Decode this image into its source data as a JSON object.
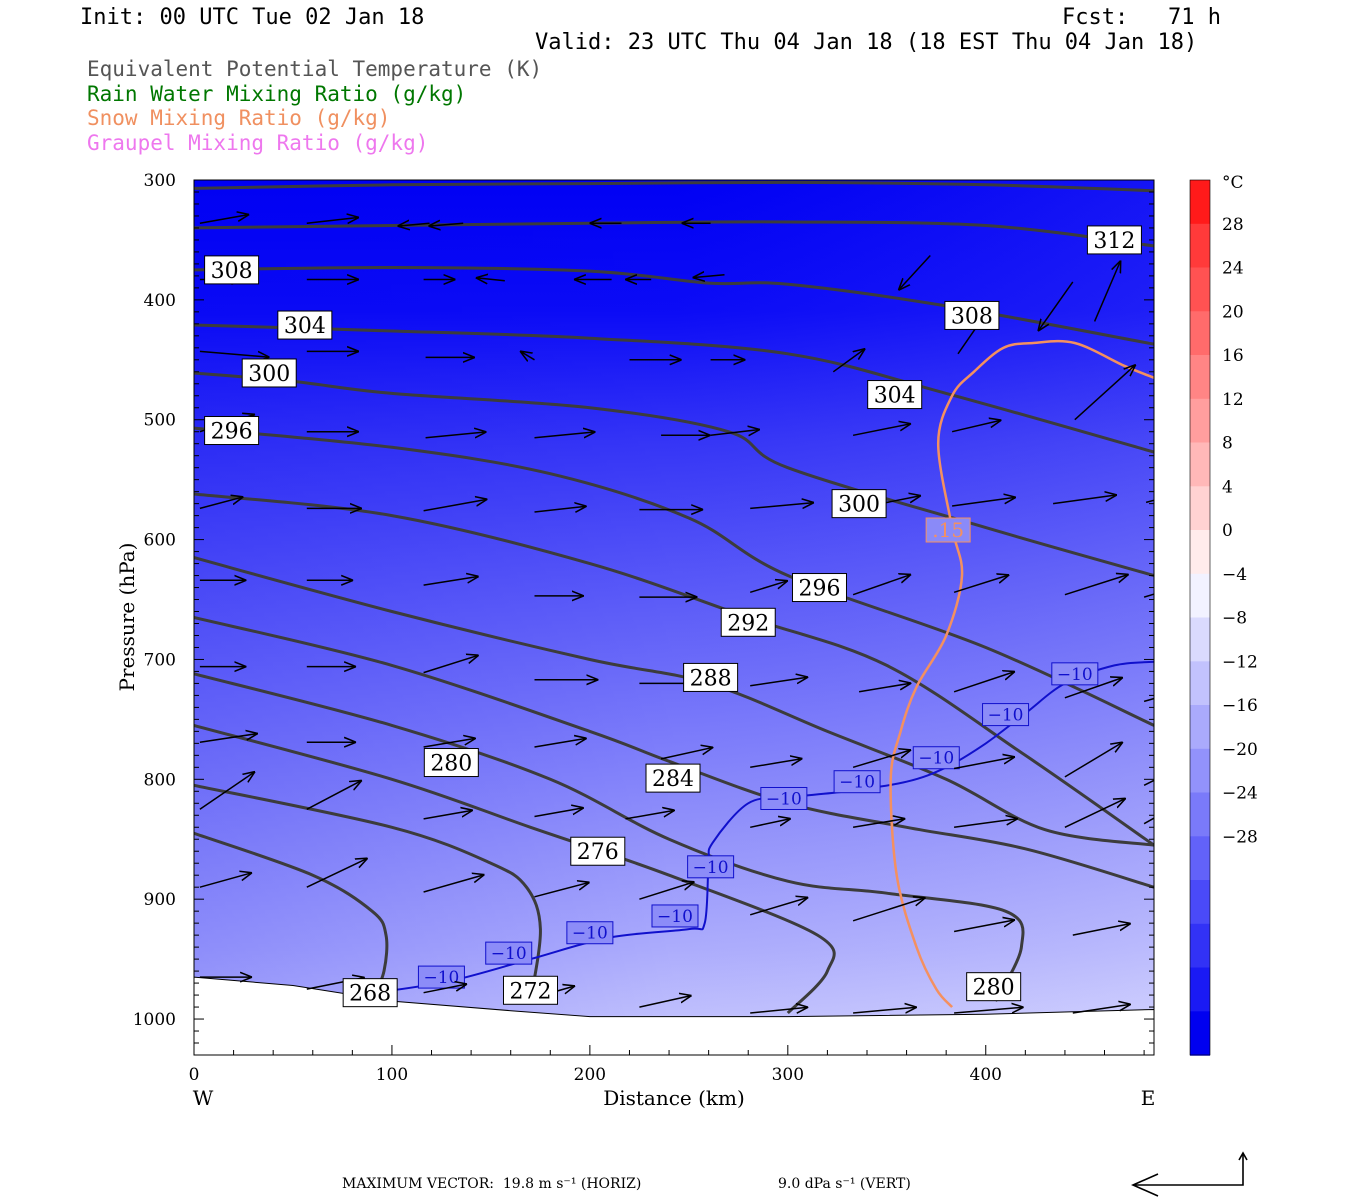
{
  "header": {
    "init": "Init: 00 UTC Tue 02 Jan 18",
    "fcst": "Fcst:   71 h",
    "valid": "Valid: 23 UTC Thu 04 Jan 18 (18 EST Thu 04 Jan 18)"
  },
  "legend": [
    {
      "label": "Equivalent Potential Temperature (K)",
      "color": "#555555"
    },
    {
      "label": "Rain Water Mixing Ratio (g/kg)",
      "color": "#007700"
    },
    {
      "label": "Snow Mixing Ratio (g/kg)",
      "color": "#f09060"
    },
    {
      "label": "Graupel Mixing Ratio (g/kg)",
      "color": "#ee77ee"
    }
  ],
  "footer": {
    "max_vector_label": "MAXIMUM VECTOR:",
    "horiz": "19.8 m s⁻¹ (HORIZ)",
    "vert": "9.0 dPa s⁻¹ (VERT)"
  },
  "chart_data": {
    "type": "cross-section",
    "xlabel": "Distance (km)",
    "ylabel": "Pressure (hPa)",
    "xlim": [
      0,
      485
    ],
    "ylim": [
      1030,
      300
    ],
    "x_ticks": [
      0,
      100,
      200,
      300,
      400
    ],
    "y_ticks": [
      300,
      400,
      500,
      600,
      700,
      800,
      900,
      1000
    ],
    "x_left_label": "W",
    "x_right_label": "E",
    "colorbar": {
      "unit": "°C",
      "ticks": [
        28,
        24,
        20,
        16,
        12,
        8,
        4,
        0,
        -4,
        -8,
        -12,
        -16,
        -20,
        -24,
        -28
      ],
      "colors_top_to_bottom": [
        "#ff1a1a",
        "#ff3a3a",
        "#ff5252",
        "#ff6b6b",
        "#ff8585",
        "#ff9e9e",
        "#ffb8b8",
        "#ffd2d2",
        "#ffecec",
        "#f2f2ff",
        "#dadafe",
        "#c2c2fd",
        "#aaaafc",
        "#9292fb",
        "#7a7afa",
        "#6262f9",
        "#4a4af8",
        "#3232f6",
        "#1a1af4",
        "#0000f0"
      ]
    },
    "theta_e_contours": [
      {
        "label": "312",
        "points": [
          [
            0,
            307
          ],
          [
            100,
            304
          ],
          [
            200,
            303
          ],
          [
            300,
            302
          ],
          [
            400,
            304
          ],
          [
            485,
            309
          ]
        ]
      },
      {
        "label": "312",
        "points": [
          [
            0,
            340
          ],
          [
            100,
            338
          ],
          [
            200,
            336
          ],
          [
            300,
            335
          ],
          [
            400,
            338
          ],
          [
            485,
            355
          ]
        ]
      },
      {
        "label": "308",
        "points": [
          [
            0,
            375
          ],
          [
            100,
            373
          ],
          [
            200,
            376
          ],
          [
            260,
            386
          ],
          [
            300,
            387
          ],
          [
            380,
            405
          ],
          [
            485,
            437
          ]
        ]
      },
      {
        "label": "304",
        "points": [
          [
            0,
            421
          ],
          [
            100,
            426
          ],
          [
            200,
            432
          ],
          [
            300,
            445
          ],
          [
            380,
            478
          ],
          [
            485,
            527
          ]
        ]
      },
      {
        "label": "300",
        "points": [
          [
            0,
            461
          ],
          [
            50,
            468
          ],
          [
            100,
            478
          ],
          [
            200,
            490
          ],
          [
            270,
            510
          ],
          [
            300,
            540
          ],
          [
            400,
            590
          ],
          [
            485,
            630
          ]
        ]
      },
      {
        "label": "296",
        "points": [
          [
            0,
            507
          ],
          [
            100,
            523
          ],
          [
            180,
            545
          ],
          [
            250,
            582
          ],
          [
            300,
            630
          ],
          [
            400,
            690
          ],
          [
            485,
            755
          ]
        ]
      },
      {
        "label": "292",
        "points": [
          [
            0,
            562
          ],
          [
            100,
            580
          ],
          [
            200,
            620
          ],
          [
            280,
            665
          ],
          [
            350,
            705
          ],
          [
            420,
            780
          ],
          [
            485,
            855
          ]
        ]
      },
      {
        "label": "288",
        "points": [
          [
            0,
            615
          ],
          [
            100,
            660
          ],
          [
            200,
            700
          ],
          [
            260,
            720
          ],
          [
            320,
            760
          ],
          [
            380,
            800
          ],
          [
            430,
            842
          ],
          [
            485,
            855
          ]
        ]
      },
      {
        "label": "284",
        "points": [
          [
            0,
            665
          ],
          [
            100,
            705
          ],
          [
            200,
            760
          ],
          [
            240,
            785
          ],
          [
            300,
            820
          ],
          [
            360,
            840
          ],
          [
            420,
            858
          ],
          [
            485,
            890
          ]
        ]
      },
      {
        "label": "280",
        "points": [
          [
            0,
            712
          ],
          [
            100,
            755
          ],
          [
            180,
            800
          ],
          [
            240,
            850
          ],
          [
            300,
            885
          ],
          [
            350,
            895
          ],
          [
            410,
            910
          ],
          [
            418,
            940
          ],
          [
            405,
            985
          ]
        ]
      },
      {
        "label": "276",
        "points": [
          [
            0,
            755
          ],
          [
            100,
            800
          ],
          [
            170,
            840
          ],
          [
            240,
            880
          ],
          [
            315,
            930
          ],
          [
            320,
            960
          ],
          [
            300,
            995
          ]
        ]
      },
      {
        "label": "272",
        "points": [
          [
            0,
            805
          ],
          [
            100,
            840
          ],
          [
            150,
            870
          ],
          [
            168,
            890
          ],
          [
            175,
            925
          ],
          [
            170,
            985
          ]
        ]
      },
      {
        "label": "268",
        "points": [
          [
            0,
            845
          ],
          [
            60,
            880
          ],
          [
            90,
            910
          ],
          [
            97,
            930
          ],
          [
            96,
            960
          ],
          [
            90,
            985
          ]
        ]
      }
    ],
    "theta_e_labels": [
      {
        "text": "312",
        "x": 465,
        "p": 350
      },
      {
        "text": "308",
        "x": 19,
        "p": 375
      },
      {
        "text": "308",
        "x": 393,
        "p": 413
      },
      {
        "text": "304",
        "x": 56,
        "p": 421
      },
      {
        "text": "304",
        "x": 354,
        "p": 479
      },
      {
        "text": "300",
        "x": 38,
        "p": 461
      },
      {
        "text": "300",
        "x": 336,
        "p": 570
      },
      {
        "text": "296",
        "x": 19,
        "p": 509
      },
      {
        "text": "296",
        "x": 316,
        "p": 640
      },
      {
        "text": "292",
        "x": 280,
        "p": 669
      },
      {
        "text": "288",
        "x": 261,
        "p": 715
      },
      {
        "text": "284",
        "x": 242,
        "p": 799
      },
      {
        "text": "280",
        "x": 130,
        "p": 786
      },
      {
        "text": "280",
        "x": 404,
        "p": 973
      },
      {
        "text": "276",
        "x": 204,
        "p": 860
      },
      {
        "text": "272",
        "x": 170,
        "p": 976
      },
      {
        "text": "268",
        "x": 89,
        "p": 978
      }
    ],
    "isotherm_minus10": {
      "label": "−10",
      "points": [
        [
          92,
          978
        ],
        [
          130,
          968
        ],
        [
          170,
          950
        ],
        [
          210,
          932
        ],
        [
          250,
          925
        ],
        [
          258,
          920
        ],
        [
          260,
          870
        ],
        [
          262,
          853
        ],
        [
          280,
          820
        ],
        [
          300,
          815
        ],
        [
          330,
          810
        ],
        [
          360,
          802
        ],
        [
          380,
          790
        ],
        [
          400,
          770
        ],
        [
          420,
          745
        ],
        [
          440,
          720
        ],
        [
          465,
          705
        ],
        [
          485,
          702
        ]
      ],
      "labels": [
        [
          125,
          965
        ],
        [
          159,
          945
        ],
        [
          200,
          928
        ],
        [
          243,
          914
        ],
        [
          261,
          873
        ],
        [
          298,
          816
        ],
        [
          335,
          802
        ],
        [
          375,
          782
        ],
        [
          410,
          746
        ],
        [
          445,
          712
        ]
      ]
    },
    "snow_contour": {
      "label": ".15",
      "value": 0.15,
      "points": [
        [
          383,
          990
        ],
        [
          375,
          975
        ],
        [
          365,
          940
        ],
        [
          355,
          880
        ],
        [
          352,
          800
        ],
        [
          357,
          760
        ],
        [
          365,
          723
        ],
        [
          380,
          680
        ],
        [
          388,
          630
        ],
        [
          383,
          590
        ],
        [
          376,
          520
        ],
        [
          383,
          480
        ],
        [
          394,
          460
        ],
        [
          409,
          440
        ],
        [
          424,
          436
        ],
        [
          445,
          436
        ],
        [
          470,
          455
        ],
        [
          485,
          465
        ],
        [
          485,
          1000
        ]
      ],
      "label_pos": [
        381,
        592
      ]
    },
    "wind_vectors": [
      [
        3,
        336,
        17,
        -3
      ],
      [
        57,
        336,
        18,
        -2
      ],
      [
        119,
        336,
        -11,
        1
      ],
      [
        136,
        336,
        -12,
        1
      ],
      [
        216,
        336,
        -11,
        0
      ],
      [
        261,
        336,
        -10,
        0
      ],
      [
        3,
        383,
        15,
        0
      ],
      [
        57,
        383,
        18,
        0
      ],
      [
        116,
        383,
        11,
        0
      ],
      [
        157,
        384,
        -10,
        -1
      ],
      [
        211,
        383,
        -13,
        0
      ],
      [
        231,
        383,
        -9,
        0
      ],
      [
        268,
        379,
        -11,
        1
      ],
      [
        372,
        363,
        -11,
        12
      ],
      [
        444,
        385,
        -12,
        17
      ],
      [
        3,
        443,
        24,
        2
      ],
      [
        57,
        443,
        18,
        0
      ],
      [
        117,
        448,
        17,
        0
      ],
      [
        172,
        450,
        -5,
        -3
      ],
      [
        220,
        450,
        18,
        0
      ],
      [
        261,
        450,
        12,
        0
      ],
      [
        323,
        460,
        11,
        -8
      ],
      [
        386,
        445,
        9,
        -13
      ],
      [
        455,
        418,
        9,
        -21
      ],
      [
        3,
        510,
        19,
        -6
      ],
      [
        57,
        510,
        18,
        0
      ],
      [
        117,
        515,
        21,
        -2
      ],
      [
        172,
        515,
        21,
        -2
      ],
      [
        236,
        513,
        17,
        0
      ],
      [
        261,
        513,
        17,
        -2
      ],
      [
        333,
        513,
        20,
        -4
      ],
      [
        383,
        510,
        17,
        -4
      ],
      [
        445,
        500,
        21,
        -19
      ],
      [
        3,
        574,
        15,
        -4
      ],
      [
        57,
        574,
        19,
        0
      ],
      [
        116,
        576,
        22,
        -4
      ],
      [
        172,
        577,
        18,
        -2
      ],
      [
        225,
        575,
        22,
        0
      ],
      [
        281,
        574,
        22,
        -2
      ],
      [
        338,
        573,
        20,
        -4
      ],
      [
        383,
        572,
        22,
        -3
      ],
      [
        434,
        570,
        22,
        -3
      ],
      [
        481,
        569,
        22,
        -6
      ],
      [
        3,
        634,
        16,
        0
      ],
      [
        57,
        634,
        16,
        0
      ],
      [
        116,
        638,
        19,
        -3
      ],
      [
        172,
        647,
        17,
        0
      ],
      [
        225,
        648,
        20,
        0
      ],
      [
        281,
        644,
        13,
        -4
      ],
      [
        333,
        646,
        20,
        -7
      ],
      [
        384,
        644,
        19,
        -6
      ],
      [
        440,
        646,
        22,
        -7
      ],
      [
        480,
        648,
        20,
        -6
      ],
      [
        3,
        706,
        16,
        0
      ],
      [
        57,
        706,
        17,
        0
      ],
      [
        116,
        711,
        19,
        -6
      ],
      [
        172,
        717,
        22,
        0
      ],
      [
        225,
        720,
        21,
        0
      ],
      [
        281,
        722,
        20,
        -3
      ],
      [
        336,
        727,
        18,
        -3
      ],
      [
        384,
        727,
        21,
        -7
      ],
      [
        440,
        732,
        20,
        -7
      ],
      [
        480,
        735,
        14,
        -4
      ],
      [
        3,
        769,
        20,
        -3
      ],
      [
        57,
        769,
        17,
        0
      ],
      [
        116,
        773,
        18,
        -3
      ],
      [
        172,
        773,
        18,
        -3
      ],
      [
        236,
        783,
        18,
        -4
      ],
      [
        281,
        790,
        18,
        -3
      ],
      [
        333,
        790,
        20,
        -6
      ],
      [
        384,
        791,
        21,
        -4
      ],
      [
        440,
        798,
        20,
        -12
      ],
      [
        480,
        805,
        16,
        -8
      ],
      [
        3,
        825,
        19,
        -13
      ],
      [
        57,
        825,
        19,
        -10
      ],
      [
        116,
        833,
        17,
        -3
      ],
      [
        172,
        831,
        17,
        -3
      ],
      [
        218,
        833,
        17,
        -3
      ],
      [
        281,
        840,
        14,
        -3
      ],
      [
        333,
        840,
        18,
        -3
      ],
      [
        384,
        840,
        22,
        -3
      ],
      [
        440,
        840,
        21,
        -10
      ],
      [
        480,
        837,
        16,
        -9
      ],
      [
        3,
        890,
        18,
        -5
      ],
      [
        57,
        890,
        21,
        -10
      ],
      [
        116,
        894,
        21,
        -6
      ],
      [
        172,
        898,
        19,
        -5
      ],
      [
        225,
        900,
        19,
        -6
      ],
      [
        281,
        913,
        20,
        -6
      ],
      [
        333,
        918,
        25,
        -8
      ],
      [
        384,
        927,
        21,
        -4
      ],
      [
        444,
        930,
        20,
        -4
      ],
      [
        3,
        965,
        18,
        0
      ],
      [
        57,
        975,
        20,
        -4
      ],
      [
        116,
        978,
        15,
        -3
      ],
      [
        172,
        982,
        14,
        -4
      ],
      [
        225,
        990,
        18,
        -4
      ],
      [
        281,
        995,
        20,
        -2
      ],
      [
        333,
        995,
        22,
        -2
      ],
      [
        384,
        995,
        24,
        -2
      ],
      [
        444,
        995,
        20,
        -3
      ]
    ]
  }
}
